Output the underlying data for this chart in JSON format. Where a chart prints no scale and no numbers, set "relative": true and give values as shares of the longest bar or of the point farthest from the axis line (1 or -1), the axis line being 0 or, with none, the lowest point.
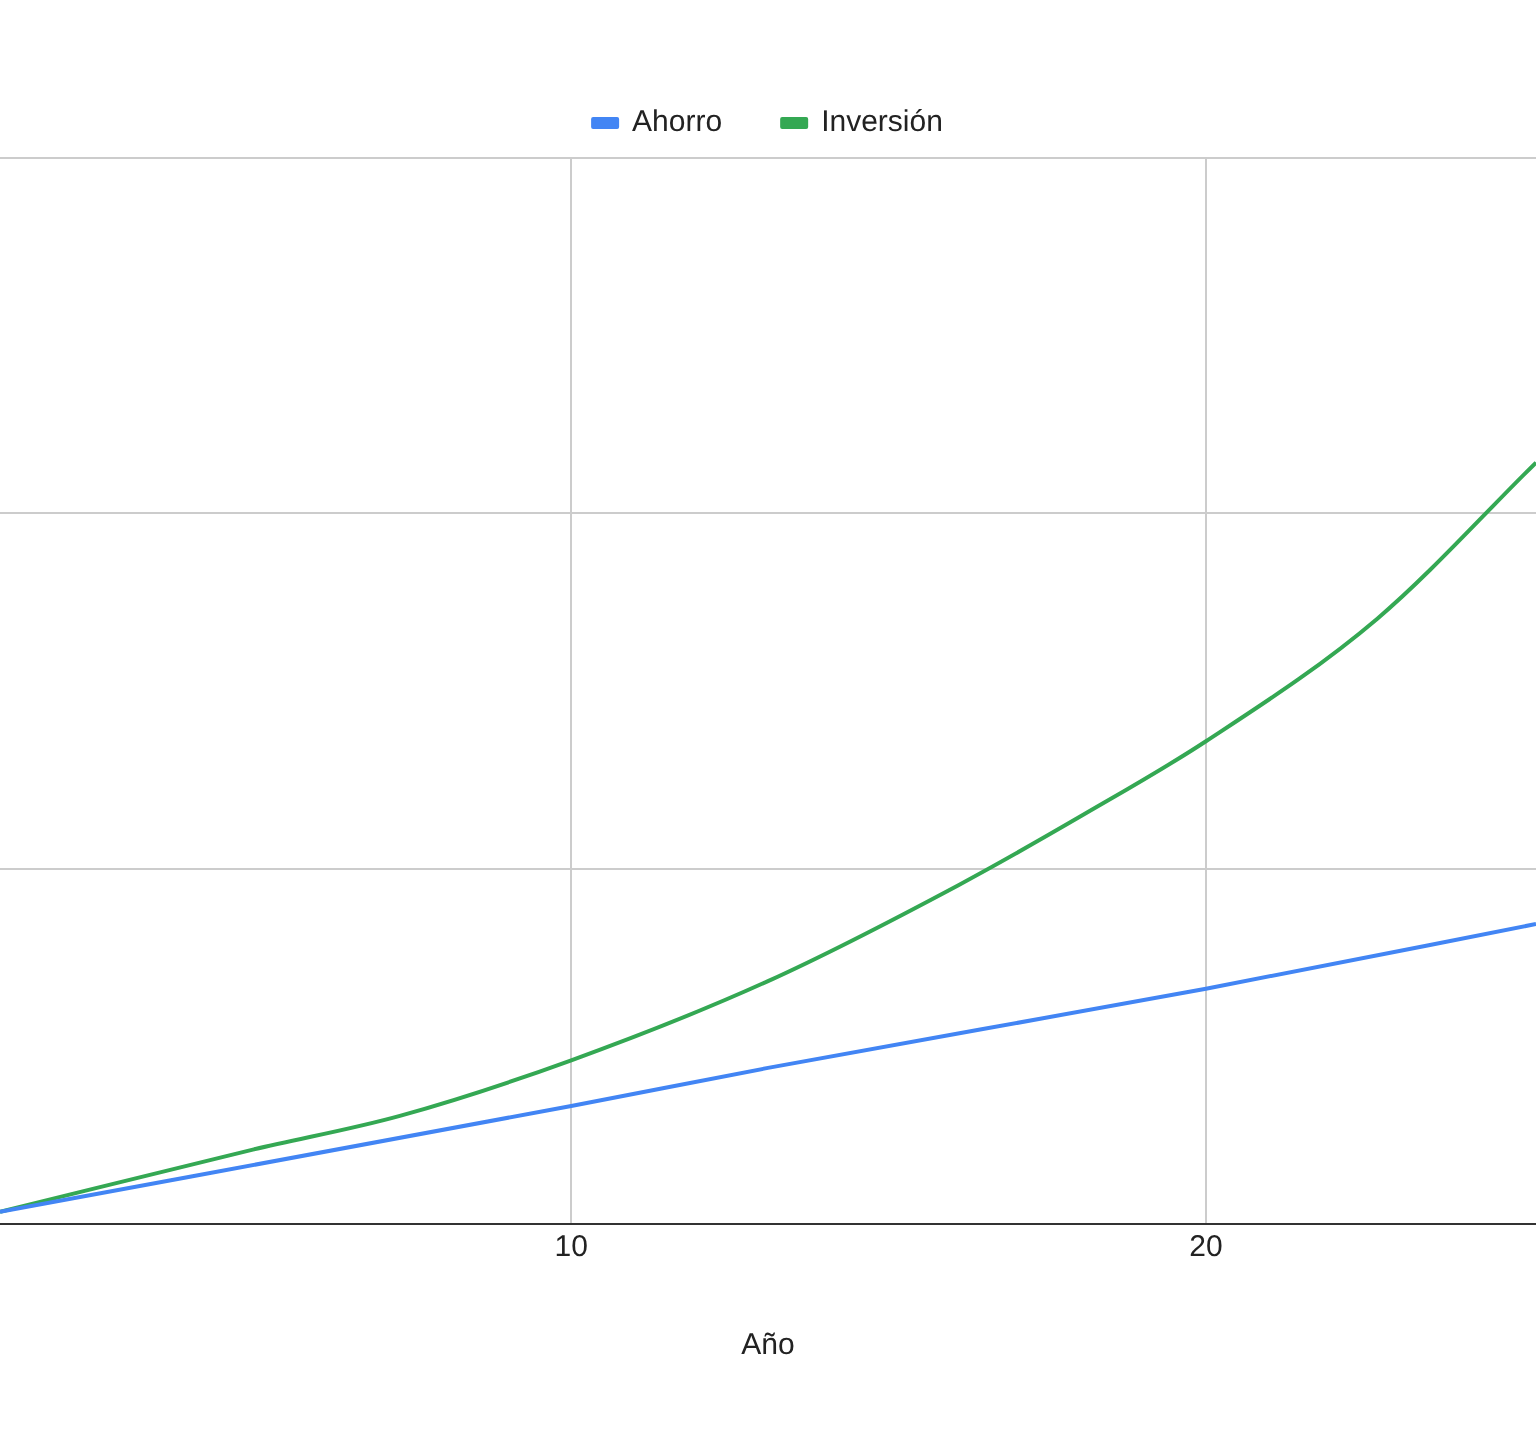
{
  "chart_data": {
    "type": "line",
    "xlabel": "Año",
    "relative": true,
    "xlim": [
      1,
      25.2
    ],
    "xticks": [
      10,
      20
    ],
    "grid": true,
    "legend": "top",
    "marker": "none",
    "line_style": "solid",
    "series": [
      {
        "name": "Ahorro",
        "color": "#4285f4",
        "x": [
          1,
          10,
          13.1,
          20,
          25.2
        ],
        "values": [
          0.016,
          0.155,
          0.205,
          0.309,
          0.394
        ]
      },
      {
        "name": "Inversión",
        "color": "#34a853",
        "x": [
          1,
          5,
          7.3,
          10,
          13.1,
          16.1,
          18.1,
          20,
          22.7,
          25.2
        ],
        "values": [
          0.016,
          0.098,
          0.142,
          0.215,
          0.319,
          0.445,
          0.539,
          0.634,
          0.795,
          1
        ]
      }
    ]
  }
}
